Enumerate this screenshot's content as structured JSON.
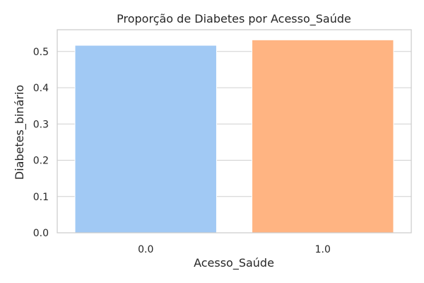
{
  "chart_data": {
    "type": "bar",
    "title": "Proporção de Diabetes por Acesso_Saúde",
    "xlabel": "Acesso_Saúde",
    "ylabel": "Diabetes_binário",
    "categories": [
      "0.0",
      "1.0"
    ],
    "values": [
      0.517,
      0.532
    ],
    "colors": [
      "#a1c9f4",
      "#ffb482"
    ],
    "ylim": [
      0,
      0.56
    ],
    "yticks": [
      0.0,
      0.1,
      0.2,
      0.3,
      0.4,
      0.5
    ],
    "ytick_labels": [
      "0.0",
      "0.1",
      "0.2",
      "0.3",
      "0.4",
      "0.5"
    ],
    "grid": true,
    "grid_axis": "y",
    "legend": "none"
  }
}
